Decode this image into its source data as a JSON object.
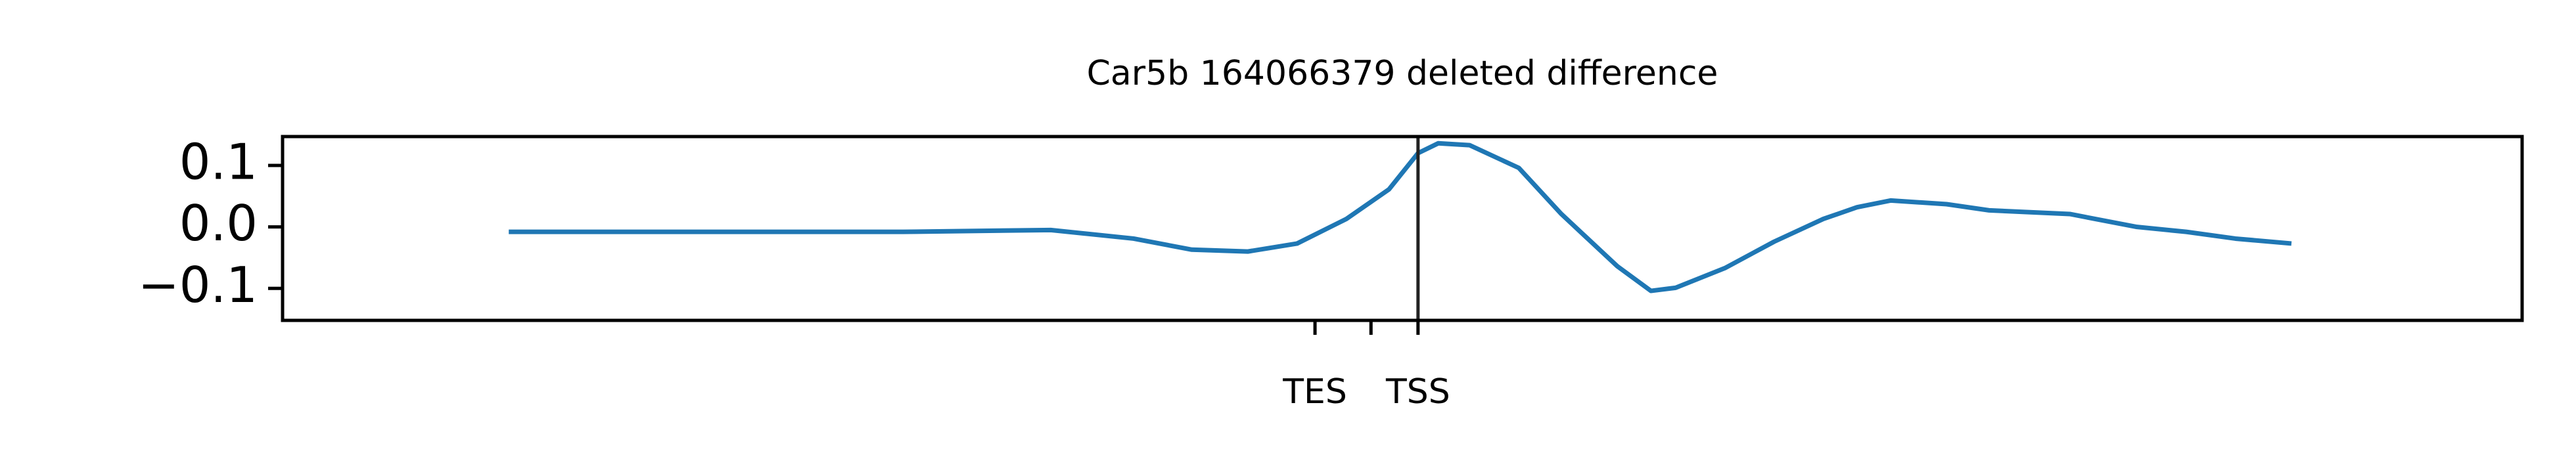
{
  "chart_data": {
    "type": "line",
    "title": "Car5b 164066379 deleted difference",
    "x": [
      10.1,
      16.7,
      27.7,
      34.3,
      38.0,
      40.6,
      43.1,
      45.3,
      47.5,
      49.4,
      50.7,
      51.6,
      53.0,
      55.2,
      57.1,
      59.6,
      61.1,
      62.2,
      64.4,
      66.6,
      68.8,
      70.3,
      71.8,
      74.3,
      76.2,
      79.8,
      82.8,
      85.0,
      87.2,
      89.7
    ],
    "series": [
      {
        "color": "#1f77b4",
        "values": [
          -0.008,
          -0.008,
          -0.008,
          -0.005,
          -0.019,
          -0.037,
          -0.04,
          -0.027,
          0.013,
          0.061,
          0.12,
          0.136,
          0.133,
          0.096,
          0.021,
          -0.064,
          -0.104,
          -0.099,
          -0.067,
          -0.024,
          0.013,
          0.032,
          0.043,
          0.037,
          0.027,
          0.021,
          0.0,
          -0.008,
          -0.019,
          -0.027
        ]
      }
    ],
    "xlim": [
      0,
      100
    ],
    "xticks": [
      {
        "value": 46.1,
        "label": "TES"
      },
      {
        "value": 48.6,
        "label": null
      },
      {
        "value": 50.7,
        "label": "TSS"
      }
    ],
    "ylim": [
      -0.152,
      0.147
    ],
    "yticks": [
      0.1,
      {
        "value": 0.0,
        "label": "0.0"
      },
      {
        "value": -0.1,
        "label": "−0.1"
      }
    ],
    "vline": 50.7,
    "vline_color": "#222222"
  }
}
